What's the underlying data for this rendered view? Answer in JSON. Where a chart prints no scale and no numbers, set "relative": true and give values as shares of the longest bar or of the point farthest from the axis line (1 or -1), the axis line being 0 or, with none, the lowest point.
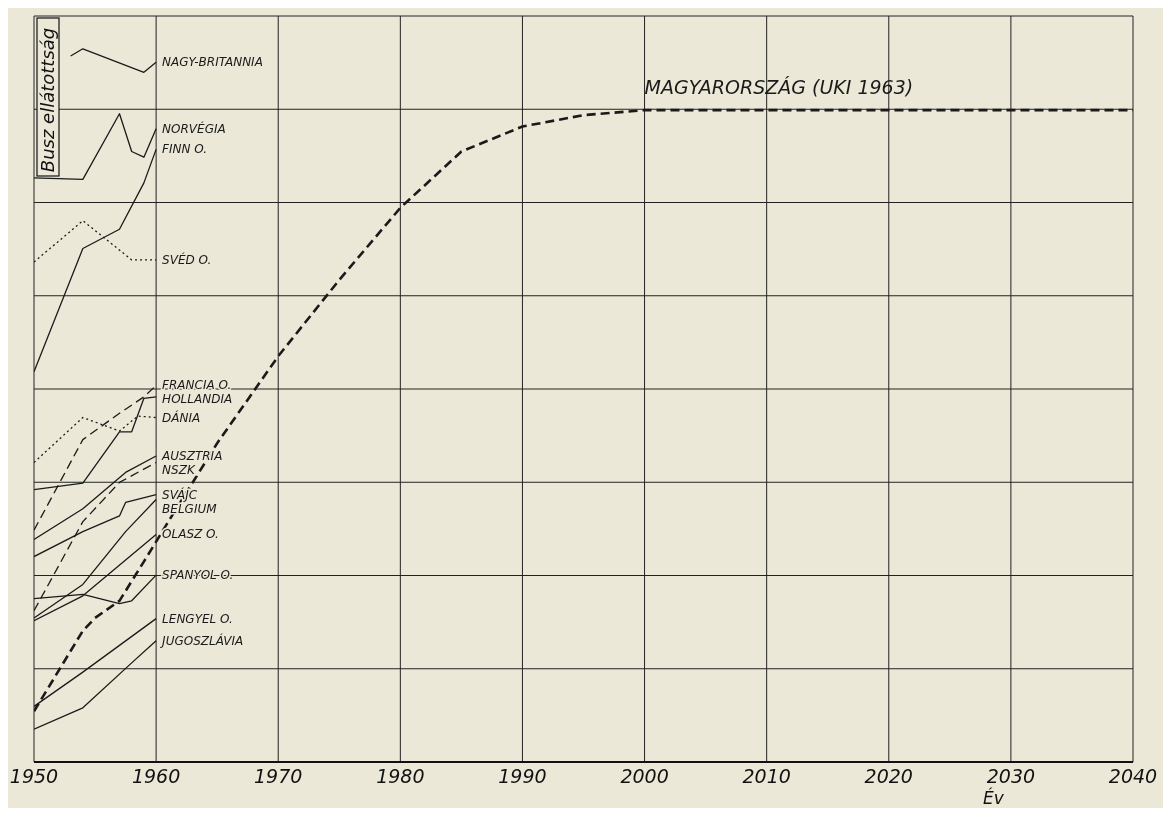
{
  "chart_data": {
    "type": "line",
    "ylabel": "Busz ellátottság",
    "xlabel": "Év",
    "relative": true,
    "xlim": [
      1950,
      2040
    ],
    "xticks": [
      1950,
      1960,
      1970,
      1980,
      1990,
      2000,
      2010,
      2020,
      2030,
      2040
    ],
    "grid": true,
    "legend": false,
    "marker": "none",
    "line_style": "solid",
    "series": [
      {
        "name": "NAGY-BRITANNIA",
        "color": "#1a1a1a",
        "x": [
          1953,
          1954,
          1959,
          1960
        ],
        "values": [
          0.99,
          1.0,
          0.967,
          0.981
        ]
      },
      {
        "name": "NORVÉGIA",
        "color": "#1a1a1a",
        "x": [
          1950,
          1954,
          1957,
          1958,
          1959,
          1960
        ],
        "values": [
          0.819,
          0.817,
          0.909,
          0.856,
          0.848,
          0.888
        ]
      },
      {
        "name": "FINN O.",
        "color": "#1a1a1a",
        "x": [
          1950,
          1954,
          1957,
          1959,
          1960
        ],
        "values": [
          0.547,
          0.72,
          0.747,
          0.812,
          0.859
        ]
      },
      {
        "name": "SVÉD O.",
        "color": "#1a1a1a",
        "line_style": "dotted",
        "x": [
          1950,
          1954,
          1958,
          1960
        ],
        "values": [
          0.701,
          0.759,
          0.704,
          0.704
        ]
      },
      {
        "name": "FRANCIA O.",
        "color": "#1a1a1a",
        "line_style": "dashed",
        "x": [
          1950,
          1954,
          1957,
          1959,
          1960
        ],
        "values": [
          0.325,
          0.452,
          0.489,
          0.512,
          0.528
        ]
      },
      {
        "name": "HOLLANDIA",
        "color": "#1a1a1a",
        "x": [
          1950,
          1954,
          1957,
          1958,
          1959,
          1960
        ],
        "values": [
          0.382,
          0.391,
          0.463,
          0.463,
          0.51,
          0.512
        ]
      },
      {
        "name": "DÁNIA",
        "color": "#1a1a1a",
        "line_style": "dotted",
        "x": [
          1950,
          1954,
          1957,
          1958.5,
          1960
        ],
        "values": [
          0.42,
          0.483,
          0.464,
          0.485,
          0.483
        ]
      },
      {
        "name": "AUSZTRIA",
        "color": "#1a1a1a",
        "x": [
          1950,
          1954,
          1957.5,
          1960
        ],
        "values": [
          0.312,
          0.355,
          0.406,
          0.429
        ]
      },
      {
        "name": "NSZK",
        "color": "#1a1a1a",
        "line_style": "dashed",
        "x": [
          1950,
          1954,
          1957,
          1960
        ],
        "values": [
          0.212,
          0.337,
          0.392,
          0.42
        ]
      },
      {
        "name": "SVÁJC",
        "color": "#1a1a1a",
        "x": [
          1950,
          1954,
          1957,
          1957.5,
          1960
        ],
        "values": [
          0.288,
          0.323,
          0.345,
          0.364,
          0.375
        ]
      },
      {
        "name": "BELGIUM",
        "color": "#1a1a1a",
        "x": [
          1950,
          1954,
          1957.5,
          1960
        ],
        "values": [
          0.202,
          0.249,
          0.323,
          0.368
        ]
      },
      {
        "name": "OLASZ O.",
        "color": "#1a1a1a",
        "x": [
          1950,
          1954,
          1960
        ],
        "values": [
          0.198,
          0.233,
          0.319
        ]
      },
      {
        "name": "SPANYOL O.",
        "color": "#1a1a1a",
        "x": [
          1950,
          1954,
          1957,
          1958,
          1960
        ],
        "values": [
          0.229,
          0.235,
          0.222,
          0.226,
          0.262
        ]
      },
      {
        "name": "LENGYEL O.",
        "color": "#1a1a1a",
        "x": [
          1950,
          1954,
          1960
        ],
        "values": [
          0.078,
          0.126,
          0.201
        ]
      },
      {
        "name": "JUGOSZLÁVIA",
        "color": "#1a1a1a",
        "x": [
          1950,
          1954,
          1958,
          1960
        ],
        "values": [
          0.046,
          0.076,
          0.139,
          0.17
        ]
      },
      {
        "name": "MAGYARORSZÁG (UKI 1963)",
        "color": "#1a1a1a",
        "line_style": "dashed",
        "x": [
          1950,
          1954,
          1955,
          1957,
          1959,
          1961,
          1965,
          1970,
          1975,
          1980,
          1985,
          1990,
          1995,
          2000,
          2040
        ],
        "values": [
          0.071,
          0.184,
          0.202,
          0.226,
          0.281,
          0.337,
          0.447,
          0.569,
          0.676,
          0.777,
          0.856,
          0.891,
          0.907,
          0.914,
          0.914
        ]
      }
    ]
  }
}
